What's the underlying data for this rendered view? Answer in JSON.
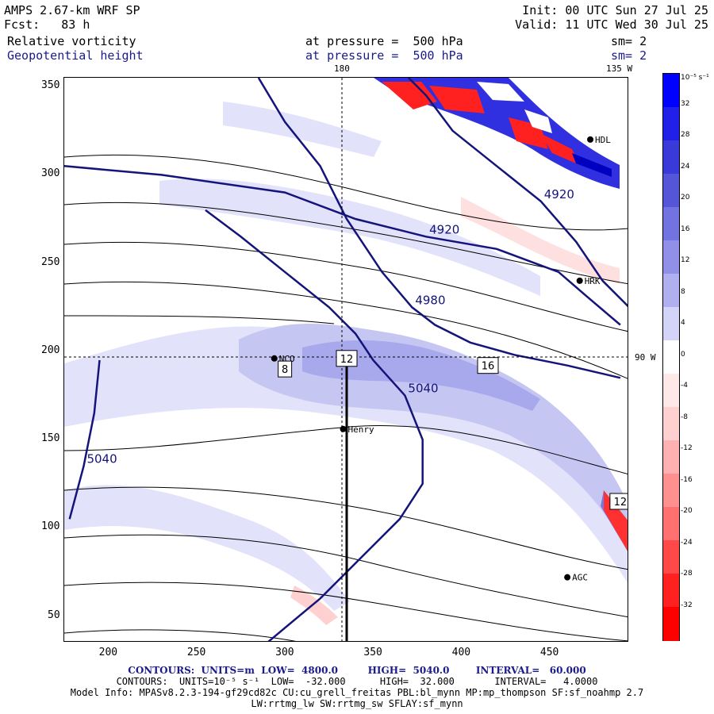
{
  "header": {
    "model": "AMPS 2.67-km WRF SP",
    "init": "Init: 00 UTC Sun 27 Jul 25",
    "fcst": "Fcst:   83 h",
    "valid": "Valid: 11 UTC Wed 30 Jul 25",
    "field1": "Relative vorticity",
    "field1_level": "at pressure =  500 hPa",
    "field1_sm": "sm= 2",
    "field2": "Geopotential height",
    "field2_level": "at pressure =  500 hPa",
    "field2_sm": "sm= 2"
  },
  "map_labels": {
    "top_180": "180",
    "top_135w": "135 W",
    "right_90w": "90 W"
  },
  "axes": {
    "x_ticks": [
      "200",
      "250",
      "300",
      "350",
      "400",
      "450"
    ],
    "y_ticks": [
      "350",
      "300",
      "250",
      "200",
      "150",
      "100",
      "50"
    ]
  },
  "stations": [
    "NCO",
    "Henry",
    "HRK",
    "HDL",
    "AGC"
  ],
  "colorbar": {
    "unit": "10⁻⁵ s⁻¹",
    "labels": [
      "32",
      "28",
      "24",
      "20",
      "16",
      "12",
      "8",
      "4",
      "0",
      "-4",
      "-8",
      "-12",
      "-16",
      "-20",
      "-24",
      "-28",
      "-32"
    ],
    "colors": [
      "#0000ff",
      "#2020e8",
      "#3a3ad8",
      "#5555d8",
      "#7272e0",
      "#9090e8",
      "#b0b0f0",
      "#d4d4f8",
      "#ffffff",
      "#ffe8e8",
      "#ffd0d0",
      "#ffb0b0",
      "#ff9090",
      "#ff7070",
      "#ff4848",
      "#ff2020",
      "#ff0000"
    ]
  },
  "footer": {
    "contours1": "CONTOURS:  UNITS=m  LOW=  4800.0         HIGH=  5040.0        INTERVAL=   60.000",
    "contours2": "CONTOURS:  UNITS=10⁻⁵ s⁻¹  LOW=  -32.000      HIGH=  32.000       INTERVAL=   4.0000",
    "model_info": "Model Info: MPASv8.2.3-194-gf29cd82c CU:cu_grell_freitas PBL:bl_mynn MP:mp_thompson SF:sf_noahmp 2.7",
    "model_info2": "LW:rrtmg_lw SW:rrtmg_sw SFLAY:sf_mynn"
  },
  "chart_data": {
    "type": "contour_map",
    "title": "Relative vorticity / Geopotential height at 500 hPa",
    "xlim": [
      175,
      495
    ],
    "ylim": [
      35,
      355
    ],
    "height_contours": [
      {
        "label": "4920",
        "points": [
          [
            175,
            305
          ],
          [
            230,
            300
          ],
          [
            300,
            290
          ],
          [
            340,
            275
          ],
          [
            380,
            265
          ],
          [
            420,
            258
          ],
          [
            455,
            245
          ],
          [
            470,
            232
          ],
          [
            490,
            215
          ]
        ]
      },
      {
        "label": "4920",
        "points": [
          [
            370,
            355
          ],
          [
            380,
            345
          ],
          [
            395,
            325
          ],
          [
            420,
            305
          ],
          [
            445,
            285
          ],
          [
            465,
            262
          ],
          [
            480,
            240
          ],
          [
            495,
            225
          ]
        ]
      },
      {
        "label": "4980",
        "points": [
          [
            285,
            355
          ],
          [
            300,
            330
          ],
          [
            320,
            305
          ],
          [
            335,
            275
          ],
          [
            355,
            245
          ],
          [
            372,
            225
          ],
          [
            385,
            215
          ],
          [
            405,
            205
          ],
          [
            430,
            198
          ],
          [
            460,
            192
          ],
          [
            490,
            185
          ]
        ]
      },
      {
        "label": "5040",
        "points": [
          [
            195,
            195
          ],
          [
            192,
            165
          ],
          [
            186,
            135
          ],
          [
            178,
            105
          ]
        ]
      },
      {
        "label": "5040",
        "points": [
          [
            290,
            35
          ],
          [
            320,
            60
          ],
          [
            345,
            85
          ],
          [
            365,
            105
          ],
          [
            378,
            125
          ],
          [
            378,
            150
          ],
          [
            368,
            175
          ],
          [
            350,
            195
          ],
          [
            340,
            210
          ],
          [
            325,
            225
          ],
          [
            300,
            245
          ],
          [
            275,
            265
          ],
          [
            255,
            280
          ]
        ]
      }
    ],
    "vorticity_maxima": [
      {
        "x": 335,
        "y": 196,
        "value": 12
      },
      {
        "x": 300,
        "y": 190,
        "value": 8
      },
      {
        "x": 415,
        "y": 192,
        "value": 16
      },
      {
        "x": 490,
        "y": 115,
        "value": 12
      }
    ],
    "cross_section": {
      "x": [
        335,
        335
      ],
      "y": [
        35,
        196
      ]
    }
  }
}
